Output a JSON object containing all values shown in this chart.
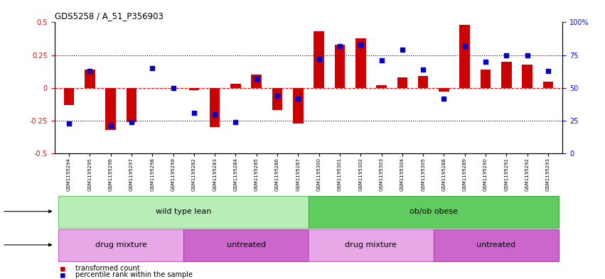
{
  "title": "GDS5258 / A_51_P356903",
  "samples": [
    "GSM1195294",
    "GSM1195295",
    "GSM1195296",
    "GSM1195297",
    "GSM1195298",
    "GSM1195299",
    "GSM1195282",
    "GSM1195283",
    "GSM1195284",
    "GSM1195285",
    "GSM1195286",
    "GSM1195287",
    "GSM1195300",
    "GSM1195301",
    "GSM1195302",
    "GSM1195303",
    "GSM1195304",
    "GSM1195305",
    "GSM1195288",
    "GSM1195289",
    "GSM1195290",
    "GSM1195291",
    "GSM1195292",
    "GSM1195293"
  ],
  "red_values": [
    -0.13,
    0.14,
    -0.32,
    -0.26,
    0.0,
    0.0,
    -0.02,
    -0.3,
    0.03,
    0.1,
    -0.17,
    -0.27,
    0.43,
    0.33,
    0.38,
    0.02,
    0.08,
    0.09,
    -0.03,
    0.48,
    0.14,
    0.2,
    0.18,
    0.05
  ],
  "blue_values": [
    -0.27,
    0.13,
    -0.29,
    -0.26,
    0.15,
    0.0,
    -0.19,
    -0.2,
    -0.26,
    0.07,
    -0.06,
    -0.08,
    0.22,
    0.32,
    0.33,
    0.21,
    0.29,
    0.14,
    -0.08,
    0.32,
    0.2,
    0.25,
    0.25,
    0.13
  ],
  "bar_color": "#cc0000",
  "dot_color": "#0000cc",
  "ylim": [
    -0.5,
    0.5
  ],
  "yticks_left": [
    -0.5,
    -0.25,
    0.0,
    0.25,
    0.5
  ],
  "ytick_labels_left": [
    "-0.5",
    "-0.25",
    "0",
    "0.25",
    "0.5"
  ],
  "right_ticks_data": [
    -0.5,
    -0.25,
    0.0,
    0.25,
    0.5
  ],
  "right_tick_labels": [
    "0",
    "25",
    "50",
    "75",
    "100%"
  ],
  "genotype_groups": [
    {
      "label": "wild type lean",
      "start": 0,
      "end": 12,
      "facecolor": "#b8edb8",
      "edgecolor": "#70c070"
    },
    {
      "label": "ob/ob obese",
      "start": 12,
      "end": 24,
      "facecolor": "#60cc60",
      "edgecolor": "#40a840"
    }
  ],
  "agent_groups": [
    {
      "label": "drug mixture",
      "start": 0,
      "end": 6,
      "facecolor": "#e8a8e8",
      "edgecolor": "#c060c0"
    },
    {
      "label": "untreated",
      "start": 6,
      "end": 12,
      "facecolor": "#cc66cc",
      "edgecolor": "#a040a0"
    },
    {
      "label": "drug mixture",
      "start": 12,
      "end": 18,
      "facecolor": "#e8a8e8",
      "edgecolor": "#c060c0"
    },
    {
      "label": "untreated",
      "start": 18,
      "end": 24,
      "facecolor": "#cc66cc",
      "edgecolor": "#a040a0"
    }
  ],
  "legend_items": [
    {
      "label": "transformed count",
      "color": "#cc0000"
    },
    {
      "label": "percentile rank within the sample",
      "color": "#0000cc"
    }
  ],
  "bar_width": 0.5,
  "dot_size": 25,
  "xlim_left": -0.7,
  "xlim_right": 23.7
}
